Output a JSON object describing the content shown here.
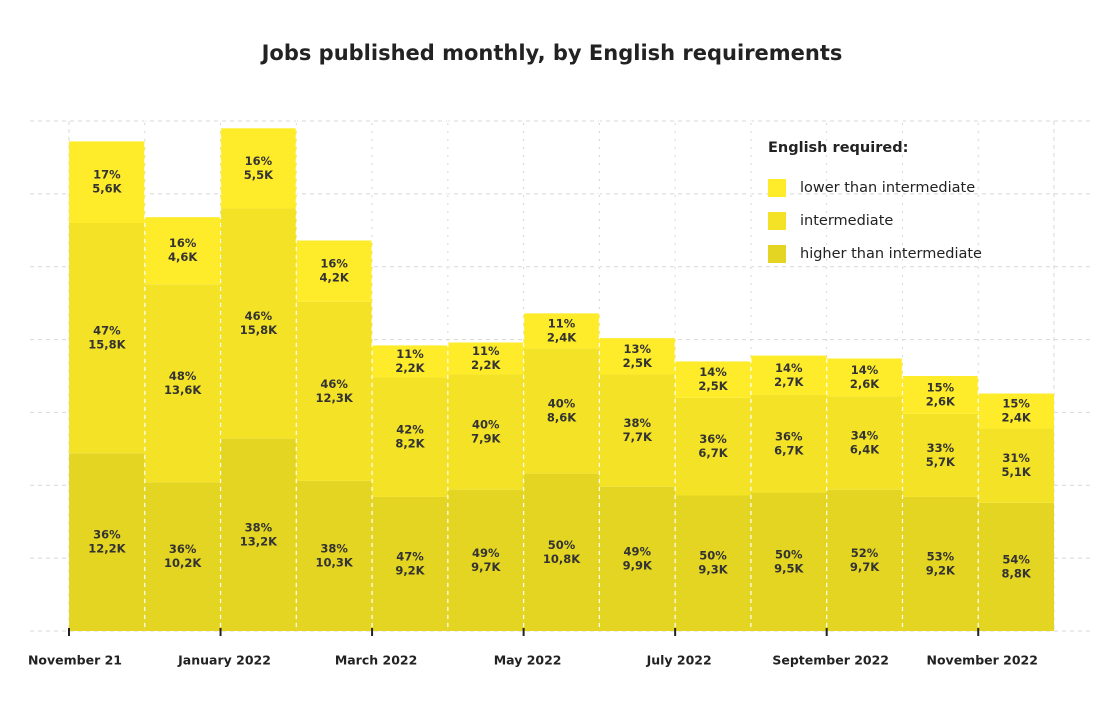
{
  "chart_data": {
    "type": "stacked_bar",
    "title": "Jobs published monthly, by English requirements",
    "legend_title": "English required:",
    "legend_position": "upper right",
    "grid": true,
    "ylim": [
      0,
      35
    ],
    "yticks": [
      0,
      5,
      10,
      15,
      20,
      25,
      30,
      35
    ],
    "categories": [
      "November 21",
      null,
      "January 2022",
      null,
      "March 2022",
      null,
      "May 2022",
      null,
      "July 2022",
      null,
      "September 2022",
      null,
      "November 2022"
    ],
    "series": [
      {
        "name": "lower than intermediate",
        "color": "#feec2b",
        "values": [
          5.6,
          4.6,
          5.5,
          4.2,
          2.2,
          2.2,
          2.4,
          2.5,
          2.5,
          2.7,
          2.6,
          2.6,
          2.4
        ],
        "value_labels": [
          "5,6K",
          "4,6K",
          "5,5K",
          "4,2K",
          "2,2K",
          "2,2K",
          "2,4K",
          "2,5K",
          "2,5K",
          "2,7K",
          "2,6K",
          "2,6K",
          "2,4K"
        ],
        "percent_labels": [
          "17%",
          "16%",
          "16%",
          "16%",
          "11%",
          "11%",
          "11%",
          "13%",
          "14%",
          "14%",
          "14%",
          "15%",
          "15%"
        ]
      },
      {
        "name": "intermediate",
        "color": "#f3e226",
        "values": [
          15.8,
          13.6,
          15.8,
          12.3,
          8.2,
          7.9,
          8.6,
          7.7,
          6.7,
          6.7,
          6.4,
          5.7,
          5.1
        ],
        "value_labels": [
          "15,8K",
          "13,6K",
          "15,8K",
          "12,3K",
          "8,2K",
          "7,9K",
          "8,6K",
          "7,7K",
          "6,7K",
          "6,7K",
          "6,4K",
          "5,7K",
          "5,1K"
        ],
        "percent_labels": [
          "47%",
          "48%",
          "46%",
          "46%",
          "42%",
          "40%",
          "40%",
          "38%",
          "36%",
          "36%",
          "34%",
          "33%",
          "31%"
        ]
      },
      {
        "name": "higher than intermediate",
        "color": "#e4d522",
        "values": [
          12.2,
          10.2,
          13.2,
          10.3,
          9.2,
          9.7,
          10.8,
          9.9,
          9.3,
          9.5,
          9.7,
          9.2,
          8.8
        ],
        "value_labels": [
          "12,2K",
          "10,2K",
          "13,2K",
          "10,3K",
          "9,2K",
          "9,7K",
          "10,8K",
          "9,9K",
          "9,3K",
          "9,5K",
          "9,7K",
          "9,2K",
          "8,8K"
        ],
        "percent_labels": [
          "36%",
          "36%",
          "38%",
          "38%",
          "47%",
          "49%",
          "50%",
          "49%",
          "50%",
          "50%",
          "52%",
          "53%",
          "54%"
        ]
      }
    ]
  }
}
